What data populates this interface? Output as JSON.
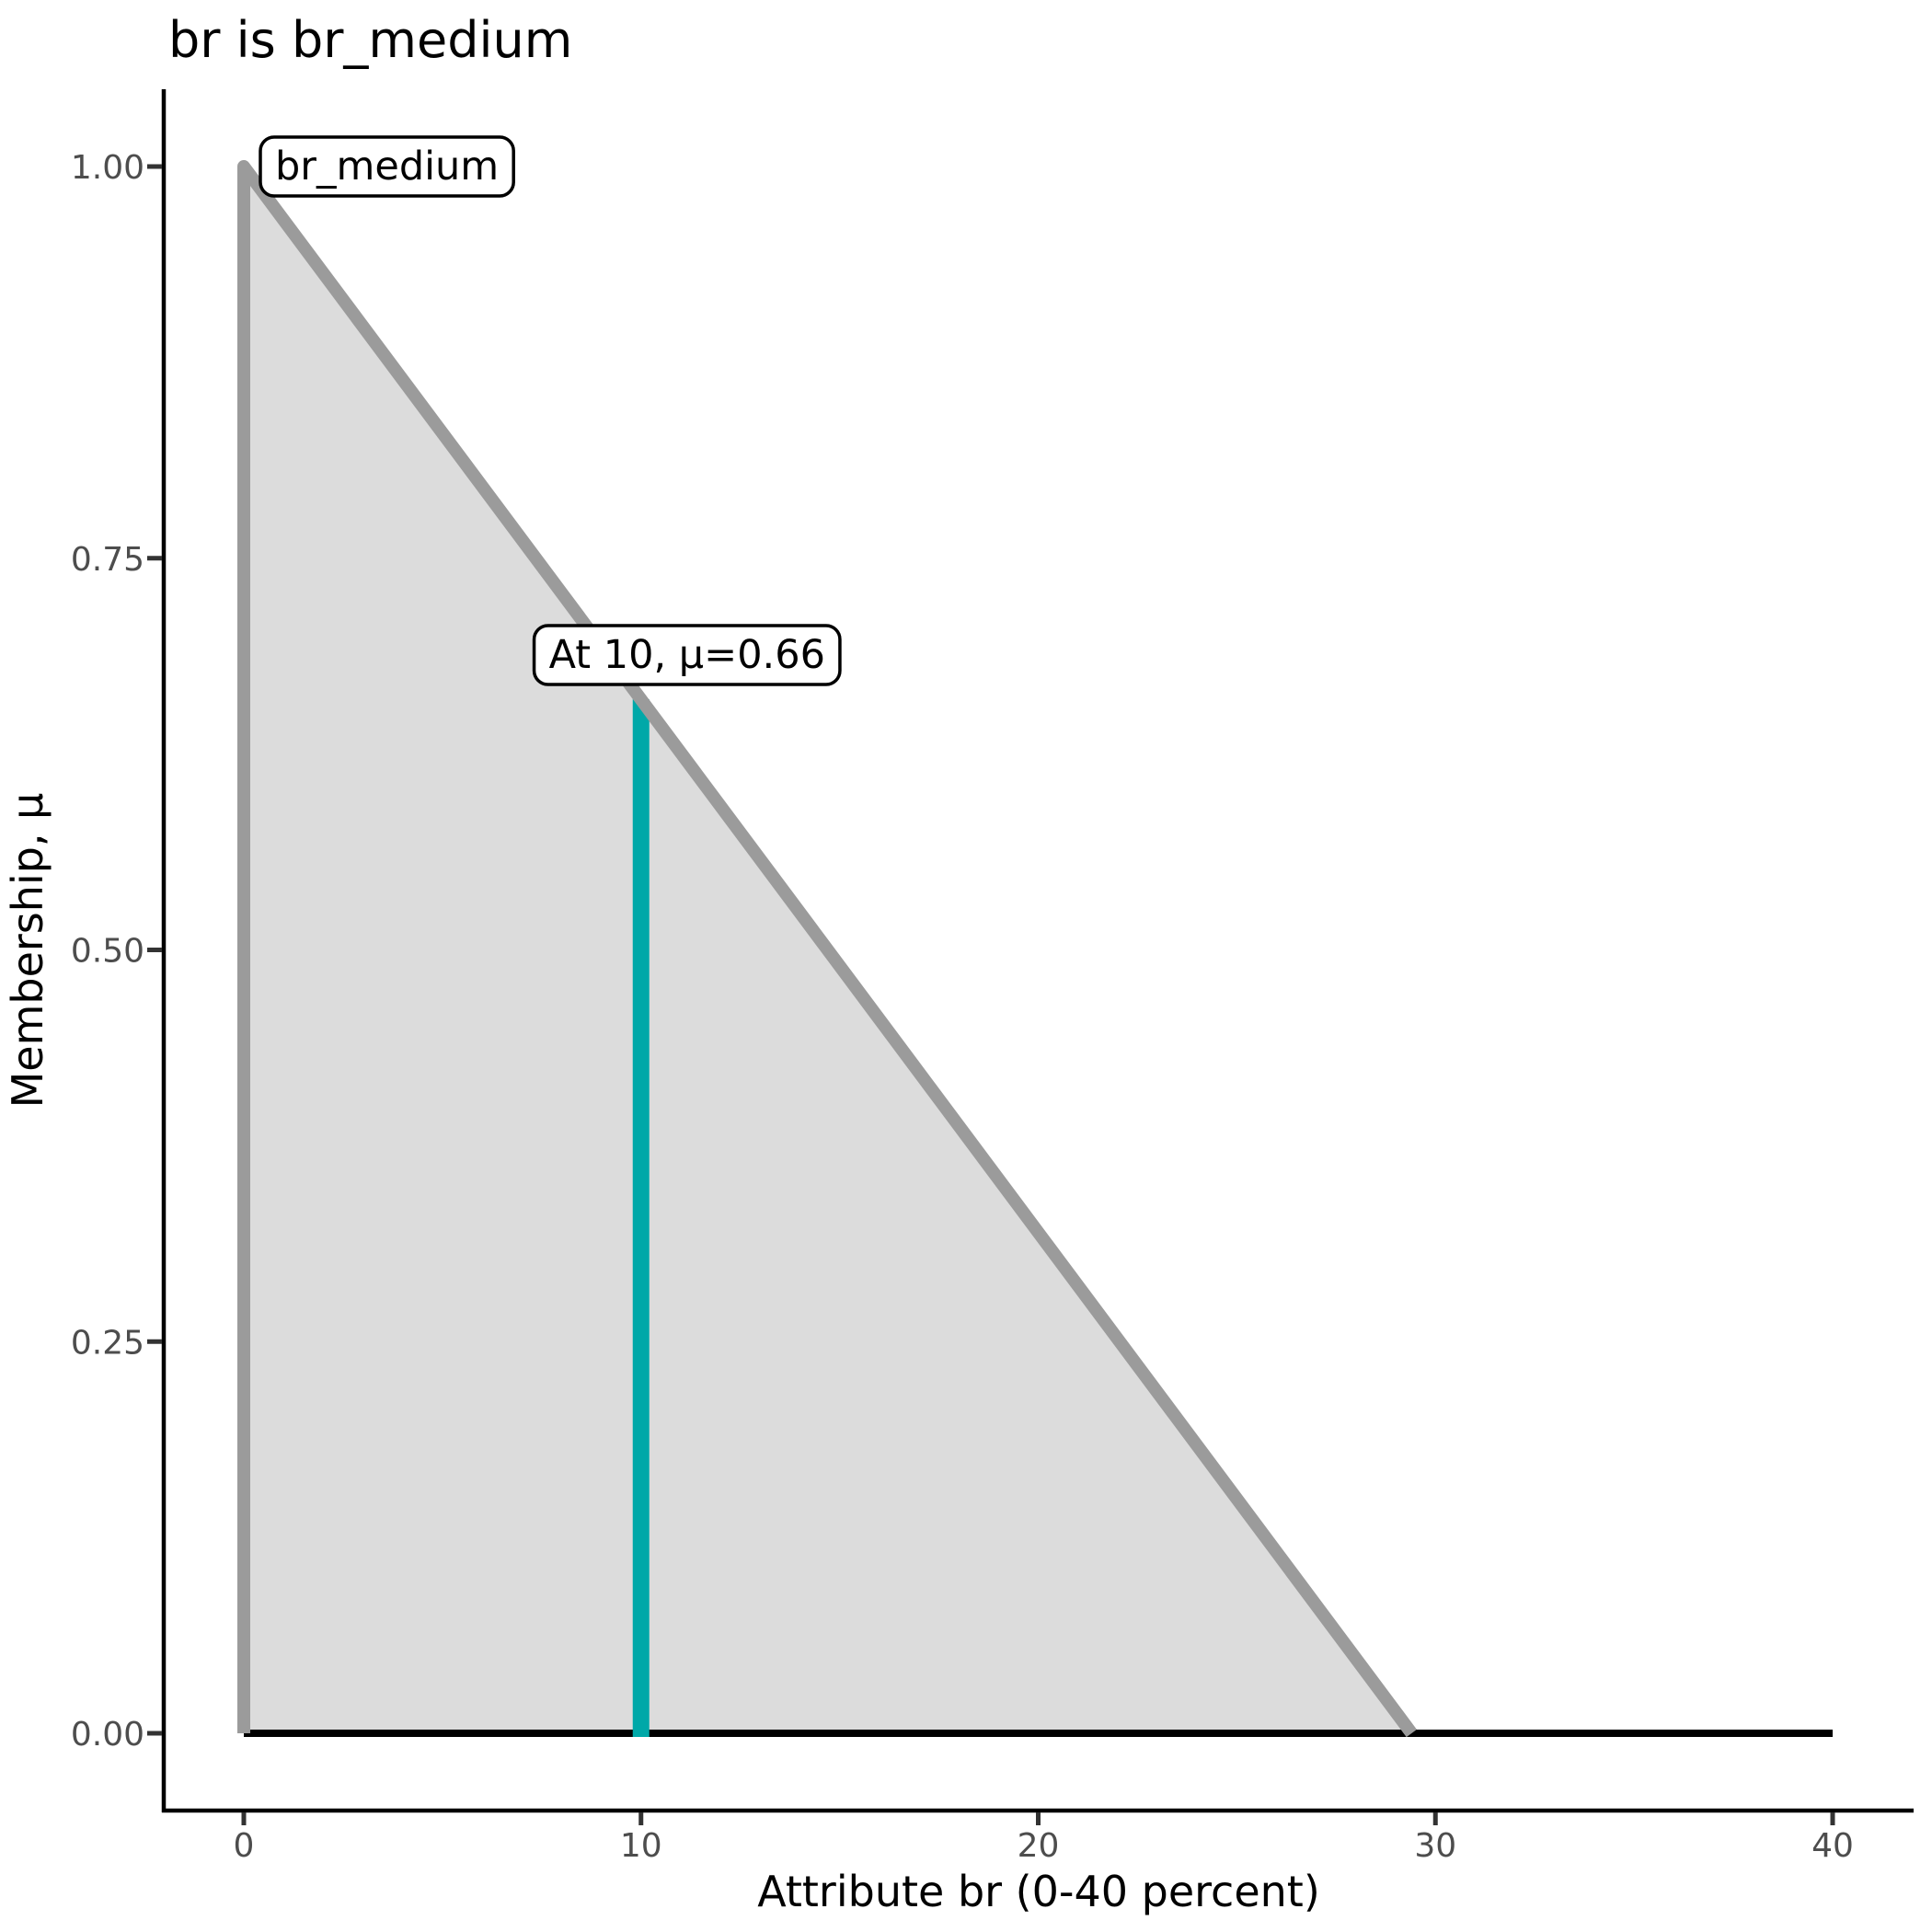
{
  "chart_data": {
    "type": "area",
    "title": "br is br_medium",
    "xlabel": "Attribute br (0-40 percent)",
    "ylabel": "Membership, μ",
    "xlim": [
      0,
      40
    ],
    "ylim": [
      0,
      1
    ],
    "grid": false,
    "legend": "none",
    "x_ticks": [
      {
        "value": 0,
        "label": "0"
      },
      {
        "value": 10,
        "label": "10"
      },
      {
        "value": 20,
        "label": "20"
      },
      {
        "value": 30,
        "label": "30"
      },
      {
        "value": 40,
        "label": "40"
      }
    ],
    "y_ticks": [
      {
        "value": 0.0,
        "label": "0.00"
      },
      {
        "value": 0.25,
        "label": "0.25"
      },
      {
        "value": 0.5,
        "label": "0.50"
      },
      {
        "value": 0.75,
        "label": "0.75"
      },
      {
        "value": 1.0,
        "label": "1.00"
      }
    ],
    "membership_function": {
      "name": "br_medium",
      "fill_polygon_x": [
        0,
        0,
        29.4
      ],
      "fill_polygon_y": [
        0,
        1,
        0
      ],
      "outline_x": [
        0,
        0,
        29.4
      ],
      "outline_y": [
        0,
        1,
        0
      ]
    },
    "baseline": {
      "x_from": 0,
      "x_to": 40,
      "mu": 0
    },
    "marker_line": {
      "x": 10,
      "mu_from": 0,
      "mu_to": 0.66
    },
    "annotations": [
      {
        "text": "br_medium",
        "anchor_x": 0,
        "anchor_mu": 1.0
      },
      {
        "text": "At 10, μ=0.66",
        "anchor_x": 10,
        "anchor_mu": 0.66
      }
    ],
    "colors": {
      "background": "#FFFFFF",
      "area_fill": "#DCDCDC",
      "area_outline": "#9B9B9B",
      "baseline": "#000000",
      "marker_line": "#00A8A8",
      "axis_line": "#000000",
      "tick_mark": "#333333",
      "tick_label": "#4D4D4D",
      "label_box_fill": "#FFFFFF",
      "label_box_border": "#000000"
    }
  }
}
